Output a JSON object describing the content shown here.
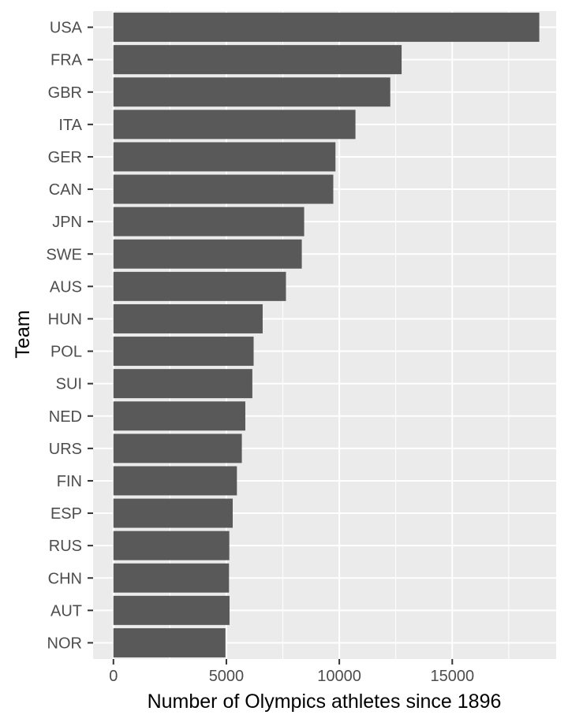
{
  "chart_data": {
    "type": "bar",
    "orientation": "horizontal",
    "xlabel": "Number of Olympics athletes since 1896",
    "ylabel": "Team",
    "xlim": [
      -900,
      19600
    ],
    "xticks": [
      0,
      5000,
      10000,
      15000
    ],
    "xtick_labels": [
      "0",
      "5000",
      "10000",
      "15000"
    ],
    "grid": true,
    "categories": [
      "USA",
      "FRA",
      "GBR",
      "ITA",
      "GER",
      "CAN",
      "JPN",
      "SWE",
      "AUS",
      "HUN",
      "POL",
      "SUI",
      "NED",
      "URS",
      "FIN",
      "ESP",
      "RUS",
      "CHN",
      "AUT",
      "NOR"
    ],
    "values": [
      18853,
      12758,
      12256,
      10715,
      9830,
      9733,
      8444,
      8339,
      7638,
      6607,
      6207,
      6150,
      5839,
      5685,
      5467,
      5281,
      5130,
      5117,
      5140,
      4960
    ],
    "colors": {
      "panel": "#ebebeb",
      "grid": "#ffffff",
      "bar": "#595959",
      "tick_text": "#4d4d4d",
      "tick_mark": "#333333",
      "title_text": "#000000"
    }
  }
}
